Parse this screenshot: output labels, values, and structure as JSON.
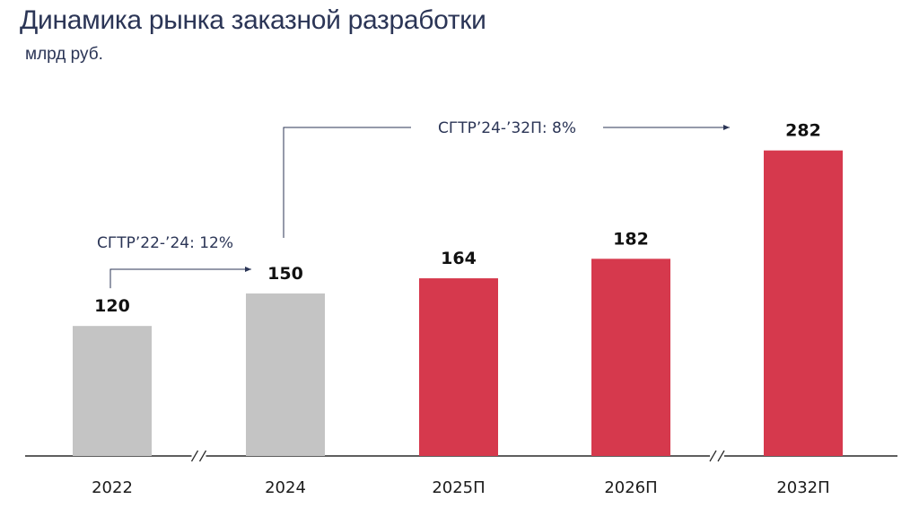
{
  "header": {
    "title": "Динамика рынка заказной разработки",
    "subtitle": "млрд руб."
  },
  "chart_data": {
    "type": "bar",
    "categories": [
      "2022",
      "2024",
      "2025П",
      "2026П",
      "2032П"
    ],
    "values": [
      120,
      150,
      164,
      182,
      282
    ],
    "bar_colors": [
      "#c4c4c4",
      "#c4c4c4",
      "#d6394d",
      "#d6394d",
      "#d6394d"
    ],
    "title": "Динамика рынка заказной разработки",
    "ylabel": "млрд руб.",
    "ylim": [
      0,
      300
    ],
    "grid": false,
    "axis_breaks_after": [
      "2022",
      "2026П"
    ],
    "annotations": [
      {
        "text": "CГТР’22-’24: 12%",
        "from": "2022",
        "to": "2024"
      },
      {
        "text": "CГТР’24-’32П: 8%",
        "from": "2024",
        "to": "2032П"
      }
    ]
  }
}
